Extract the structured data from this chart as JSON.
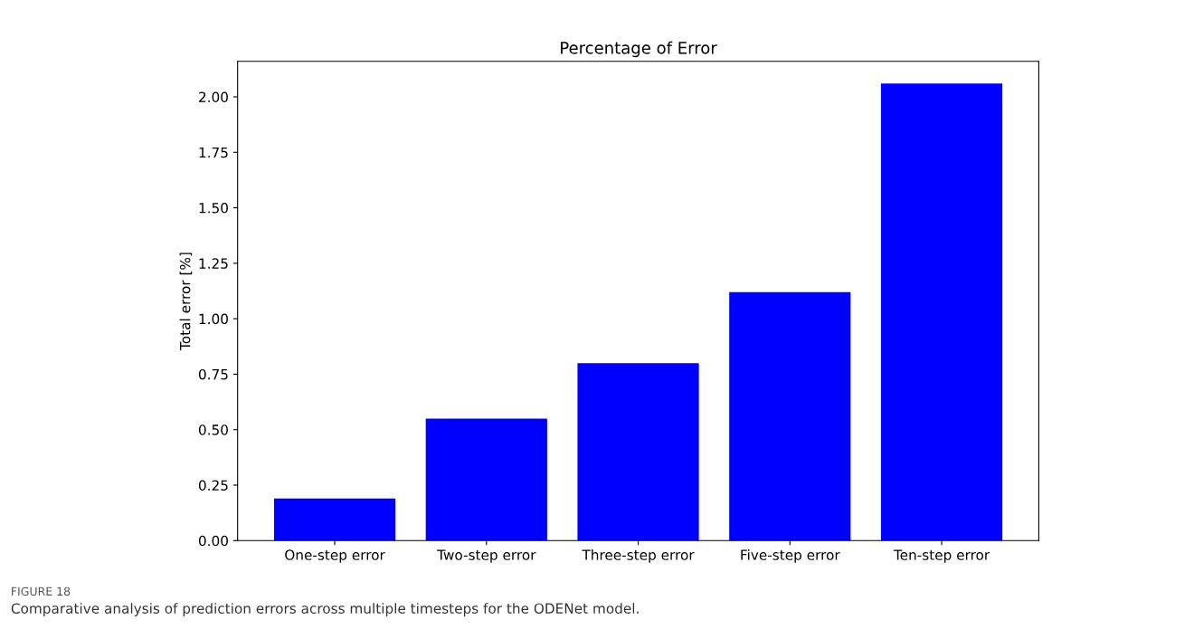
{
  "chart_data": {
    "type": "bar",
    "title": "Percentage of Error",
    "ylabel": "Total error [%]",
    "categories": [
      "One-step error",
      "Two-step error",
      "Three-step error",
      "Five-step error",
      "Ten-step error"
    ],
    "values": [
      0.19,
      0.55,
      0.8,
      1.12,
      2.06
    ],
    "color": "#0000ff",
    "ylim": [
      0,
      2.16
    ],
    "yticks": [
      {
        "value": 0,
        "label": "0.00"
      },
      {
        "value": 0.25,
        "label": "0.25"
      },
      {
        "value": 0.5,
        "label": "0.50"
      },
      {
        "value": 0.75,
        "label": "0.75"
      },
      {
        "value": 1,
        "label": "1.00"
      },
      {
        "value": 1.25,
        "label": "1.25"
      },
      {
        "value": 1.5,
        "label": "1.50"
      },
      {
        "value": 1.75,
        "label": "1.75"
      },
      {
        "value": 2,
        "label": "2.00"
      }
    ],
    "grid": false,
    "legend": false,
    "annotations": [
      "FIGURE 18",
      "Comparative analysis of prediction errors across multiple timesteps for the ODENet model."
    ]
  }
}
